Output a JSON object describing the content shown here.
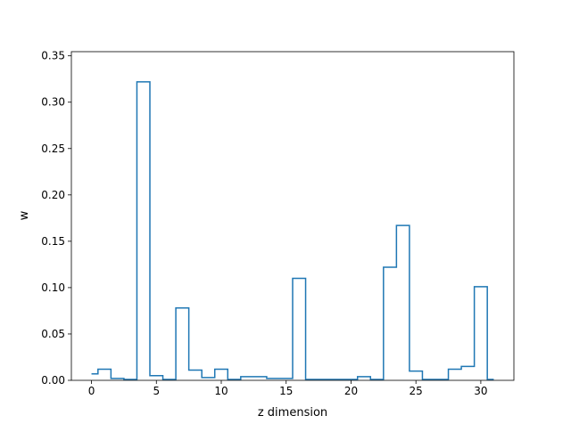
{
  "chart_data": {
    "type": "step",
    "title": "",
    "xlabel": "z dimension",
    "ylabel": "w",
    "xlim": [
      -1.55,
      32.55
    ],
    "ylim": [
      0,
      0.3545
    ],
    "xticks": [
      0,
      5,
      10,
      15,
      20,
      25,
      30
    ],
    "yticks": [
      0.0,
      0.05,
      0.1,
      0.15,
      0.2,
      0.25,
      0.3,
      0.35
    ],
    "ytick_labels": [
      "0.00",
      "0.05",
      "0.10",
      "0.15",
      "0.20",
      "0.25",
      "0.30",
      "0.35"
    ],
    "grid": false,
    "line_color": "#1f77b4",
    "step_where": "mid",
    "x": [
      0,
      1,
      2,
      3,
      4,
      5,
      6,
      7,
      8,
      9,
      10,
      11,
      12,
      13,
      14,
      15,
      16,
      17,
      18,
      19,
      20,
      21,
      22,
      23,
      24,
      25,
      26,
      27,
      28,
      29,
      30,
      31
    ],
    "values": [
      0.007,
      0.012,
      0.002,
      0.001,
      0.322,
      0.005,
      0.001,
      0.078,
      0.011,
      0.003,
      0.012,
      0.001,
      0.004,
      0.004,
      0.002,
      0.002,
      0.11,
      0.001,
      0.001,
      0.001,
      0.001,
      0.004,
      0.001,
      0.122,
      0.167,
      0.01,
      0.001,
      0.001,
      0.012,
      0.015,
      0.101,
      0.001
    ]
  }
}
